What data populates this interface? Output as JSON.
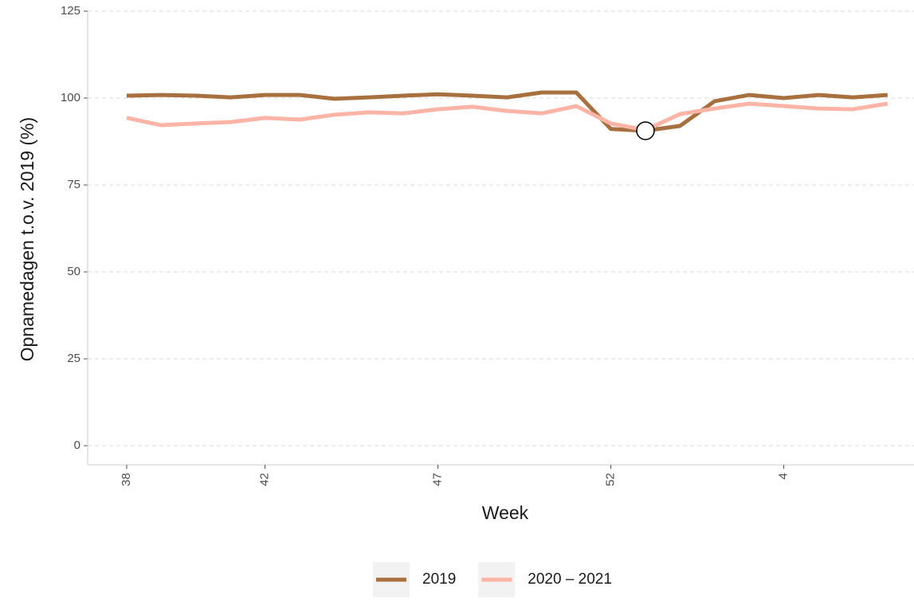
{
  "chart_data": {
    "type": "line",
    "x_label": "Week",
    "y_label": "Opnamedagen t.o.v. 2019 (%)",
    "categories": [
      "38",
      null,
      null,
      null,
      "42",
      null,
      null,
      null,
      null,
      "47",
      null,
      null,
      null,
      null,
      "52",
      null,
      null,
      null,
      null,
      "4",
      null,
      null,
      null
    ],
    "series": [
      {
        "name": "2019",
        "color": "#a8703f",
        "values": [
          100.7,
          100.9,
          100.7,
          100.2,
          100.9,
          100.9,
          99.8,
          100.2,
          100.7,
          101.1,
          100.7,
          100.2,
          101.6,
          101.6,
          91.1,
          90.6,
          92,
          99.1,
          100.9,
          100,
          100.9,
          100.2,
          100.9
        ]
      },
      {
        "name": "2020 – 2021",
        "color": "#fbb4a5",
        "values": [
          94.3,
          92.2,
          92.7,
          93.1,
          94.3,
          93.8,
          95.2,
          95.9,
          95.6,
          96.8,
          97.5,
          96.3,
          95.6,
          97.7,
          92.7,
          90.8,
          95.4,
          97,
          98.4,
          97.7,
          97,
          96.8,
          98.4
        ]
      }
    ],
    "ylim": [
      -5.5,
      125
    ],
    "yticks": [
      0,
      25,
      50,
      75,
      100,
      125
    ],
    "grid": true,
    "legend": "bottom"
  }
}
